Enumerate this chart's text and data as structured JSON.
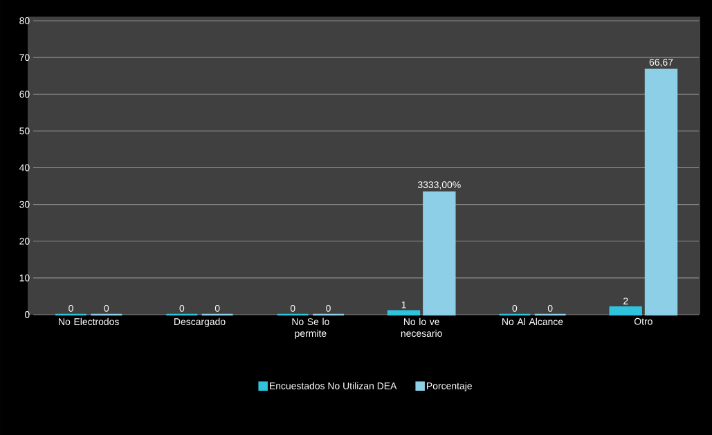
{
  "chart_data": {
    "type": "bar",
    "categories": [
      "No Electrodos",
      "Descargado",
      "No Se lo permite",
      "No lo ve necesario",
      "No Al Alcance",
      "Otro"
    ],
    "series": [
      {
        "name": "Encuestados No Utilizan DEA",
        "color": "#2fc3de",
        "values": [
          0,
          0,
          0,
          1,
          0,
          2
        ],
        "value_labels": [
          "0",
          "0",
          "0",
          "1",
          "0",
          "2"
        ]
      },
      {
        "name": "Porcentaje",
        "color": "#8ccfe6",
        "values": [
          0,
          0,
          0,
          33.33,
          0,
          66.67
        ],
        "value_labels": [
          "0",
          "0",
          "0",
          "3333,00%",
          "0",
          "66,67"
        ]
      }
    ],
    "ylim": [
      0,
      80
    ],
    "yticks": [
      0,
      10,
      20,
      30,
      40,
      50,
      60,
      70,
      80
    ],
    "grid": "y",
    "legend": "bottom"
  }
}
